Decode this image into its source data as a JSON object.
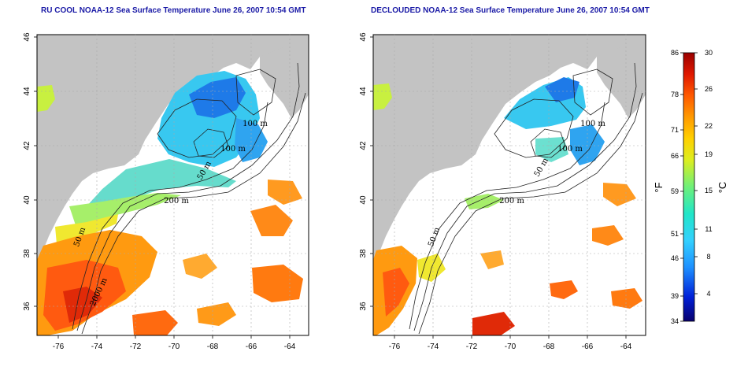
{
  "panels": [
    {
      "title": "RU COOL NOAA-12 Sea Surface Temperature June 26, 2007 10:54 GMT",
      "lon_ticks": [
        "-76",
        "-74",
        "-72",
        "-70",
        "-68",
        "-66",
        "-64"
      ],
      "lat_ticks": [
        "36",
        "38",
        "40",
        "42",
        "44",
        "46"
      ],
      "contour_labels": [
        "100 m",
        "100 m",
        "50 m",
        "200 m",
        "50 m",
        "2000 m"
      ]
    },
    {
      "title": "DECLOUDED NOAA-12 Sea Surface Temperature June 26, 2007 10:54 GMT",
      "lon_ticks": [
        "-76",
        "-74",
        "-72",
        "-70",
        "-68",
        "-66",
        "-64"
      ],
      "lat_ticks": [
        "36",
        "38",
        "40",
        "42",
        "44",
        "46"
      ],
      "contour_labels": [
        "100 m",
        "100 m",
        "50 m",
        "200 m",
        "50 m"
      ]
    }
  ],
  "colorbar": {
    "fahrenheit_unit": "°F",
    "celsius_unit": "°C",
    "fahrenheit_ticks": [
      "86",
      "78",
      "71",
      "66",
      "59",
      "51",
      "46",
      "39",
      "34"
    ],
    "celsius_ticks": [
      "30",
      "26",
      "22",
      "19",
      "15",
      "11",
      "8",
      "4"
    ],
    "colors": [
      "#08006e",
      "#0020d8",
      "#1e90ff",
      "#33d0ff",
      "#20e6c8",
      "#6ef07a",
      "#dcee20",
      "#ffd000",
      "#ff9a00",
      "#ff5a00",
      "#e01800",
      "#9a0000"
    ]
  },
  "colors": {
    "land": "#c3c3c3",
    "water_nodata": "#ffffff",
    "title": "#1a1aa6"
  }
}
